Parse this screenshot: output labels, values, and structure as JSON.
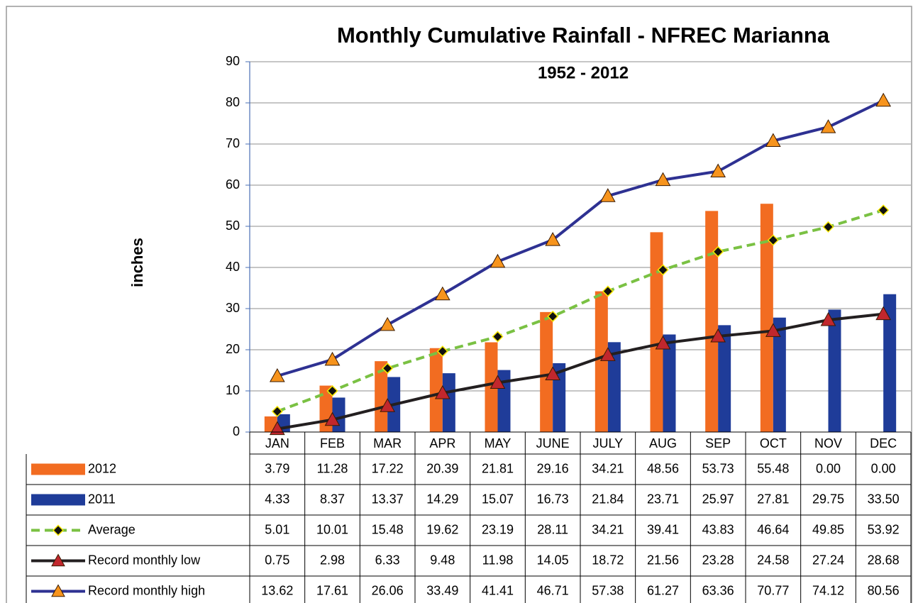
{
  "chart_data": {
    "type": "combo",
    "title": "Monthly Cumulative Rainfall - NFREC Marianna",
    "subtitle": "1952 - 2012",
    "y_label": "inches",
    "categories": [
      "JAN",
      "FEB",
      "MAR",
      "APR",
      "MAY",
      "JUNE",
      "JULY",
      "AUG",
      "SEP",
      "OCT",
      "NOV",
      "DEC"
    ],
    "ylim": [
      0,
      90
    ],
    "yticks": [
      0,
      10,
      20,
      30,
      40,
      50,
      60,
      70,
      80,
      90
    ],
    "grid": true,
    "data_table": true,
    "series": [
      {
        "name": "2012",
        "type": "bar",
        "color": "#f26c21",
        "values": [
          3.79,
          11.28,
          17.22,
          20.39,
          21.81,
          29.16,
          34.21,
          48.56,
          53.73,
          55.48,
          0.0,
          0.0
        ],
        "value_labels": [
          "3.79",
          "11.28",
          "17.22",
          "20.39",
          "21.81",
          "29.16",
          "34.21",
          "48.56",
          "53.73",
          "55.48",
          "0.00",
          "0.00"
        ]
      },
      {
        "name": "2011",
        "type": "bar",
        "color": "#1f3c99",
        "values": [
          4.33,
          8.37,
          13.37,
          14.29,
          15.07,
          16.73,
          21.84,
          23.71,
          25.97,
          27.81,
          29.75,
          33.5
        ],
        "value_labels": [
          "4.33",
          "8.37",
          "13.37",
          "14.29",
          "15.07",
          "16.73",
          "21.84",
          "23.71",
          "25.97",
          "27.81",
          "29.75",
          "33.50"
        ]
      },
      {
        "name": "Average",
        "type": "line",
        "color": "#7ac143",
        "line_style": "dashed",
        "marker": "diamond",
        "marker_color": "#111111",
        "values": [
          5.01,
          10.01,
          15.48,
          19.62,
          23.19,
          28.11,
          34.21,
          39.41,
          43.83,
          46.64,
          49.85,
          53.92
        ],
        "value_labels": [
          "5.01",
          "10.01",
          "15.48",
          "19.62",
          "23.19",
          "28.11",
          "34.21",
          "39.41",
          "43.83",
          "46.64",
          "49.85",
          "53.92"
        ]
      },
      {
        "name": "Record monthly low",
        "type": "line",
        "color": "#231f20",
        "line_style": "solid",
        "marker": "triangle",
        "marker_color": "#c1272d",
        "values": [
          0.75,
          2.98,
          6.33,
          9.48,
          11.98,
          14.05,
          18.72,
          21.56,
          23.28,
          24.58,
          27.24,
          28.68
        ],
        "value_labels": [
          "0.75",
          "2.98",
          "6.33",
          "9.48",
          "11.98",
          "14.05",
          "18.72",
          "21.56",
          "23.28",
          "24.58",
          "27.24",
          "28.68"
        ]
      },
      {
        "name": "Record monthly high",
        "type": "line",
        "color": "#2e3192",
        "line_style": "solid",
        "marker": "triangle",
        "marker_color": "#f7941d",
        "values": [
          13.62,
          17.61,
          26.06,
          33.49,
          41.41,
          46.71,
          57.38,
          61.27,
          63.36,
          70.77,
          74.12,
          80.56
        ],
        "value_labels": [
          "13.62",
          "17.61",
          "26.06",
          "33.49",
          "41.41",
          "46.71",
          "57.38",
          "61.27",
          "63.36",
          "70.77",
          "74.12",
          "80.56"
        ]
      }
    ]
  }
}
